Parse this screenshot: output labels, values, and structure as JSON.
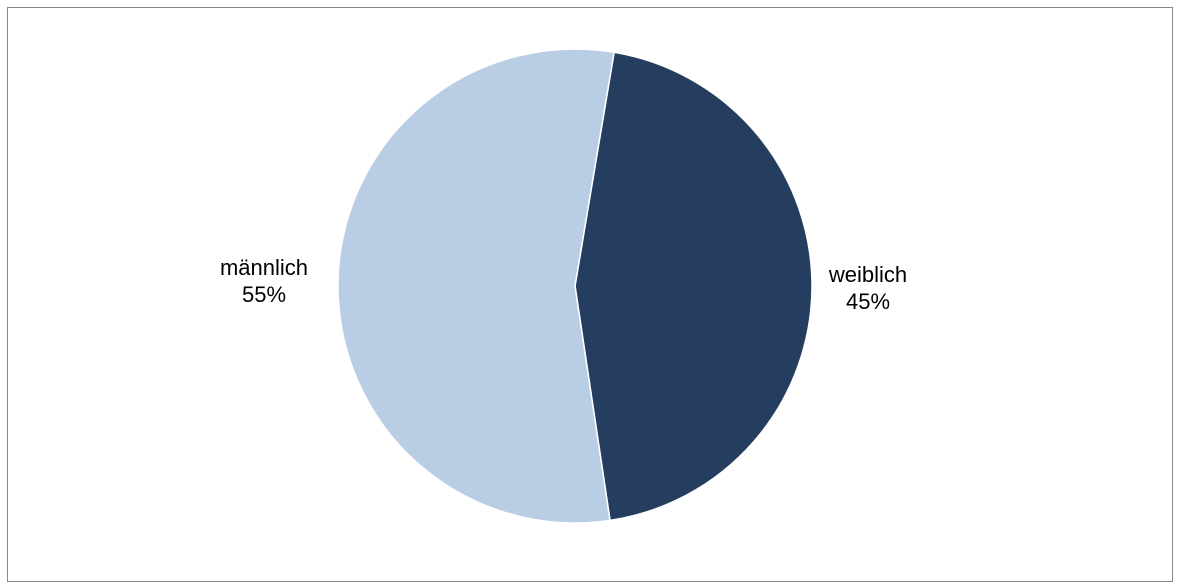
{
  "chart_data": {
    "type": "pie",
    "title": "",
    "slices": [
      {
        "label": "weiblich",
        "value": 45,
        "value_label": "45%",
        "color": "#253e5f"
      },
      {
        "label": "männlich",
        "value": 55,
        "value_label": "55%",
        "color": "#b9cde5"
      }
    ],
    "legend": "none",
    "border_color": "#868686"
  }
}
